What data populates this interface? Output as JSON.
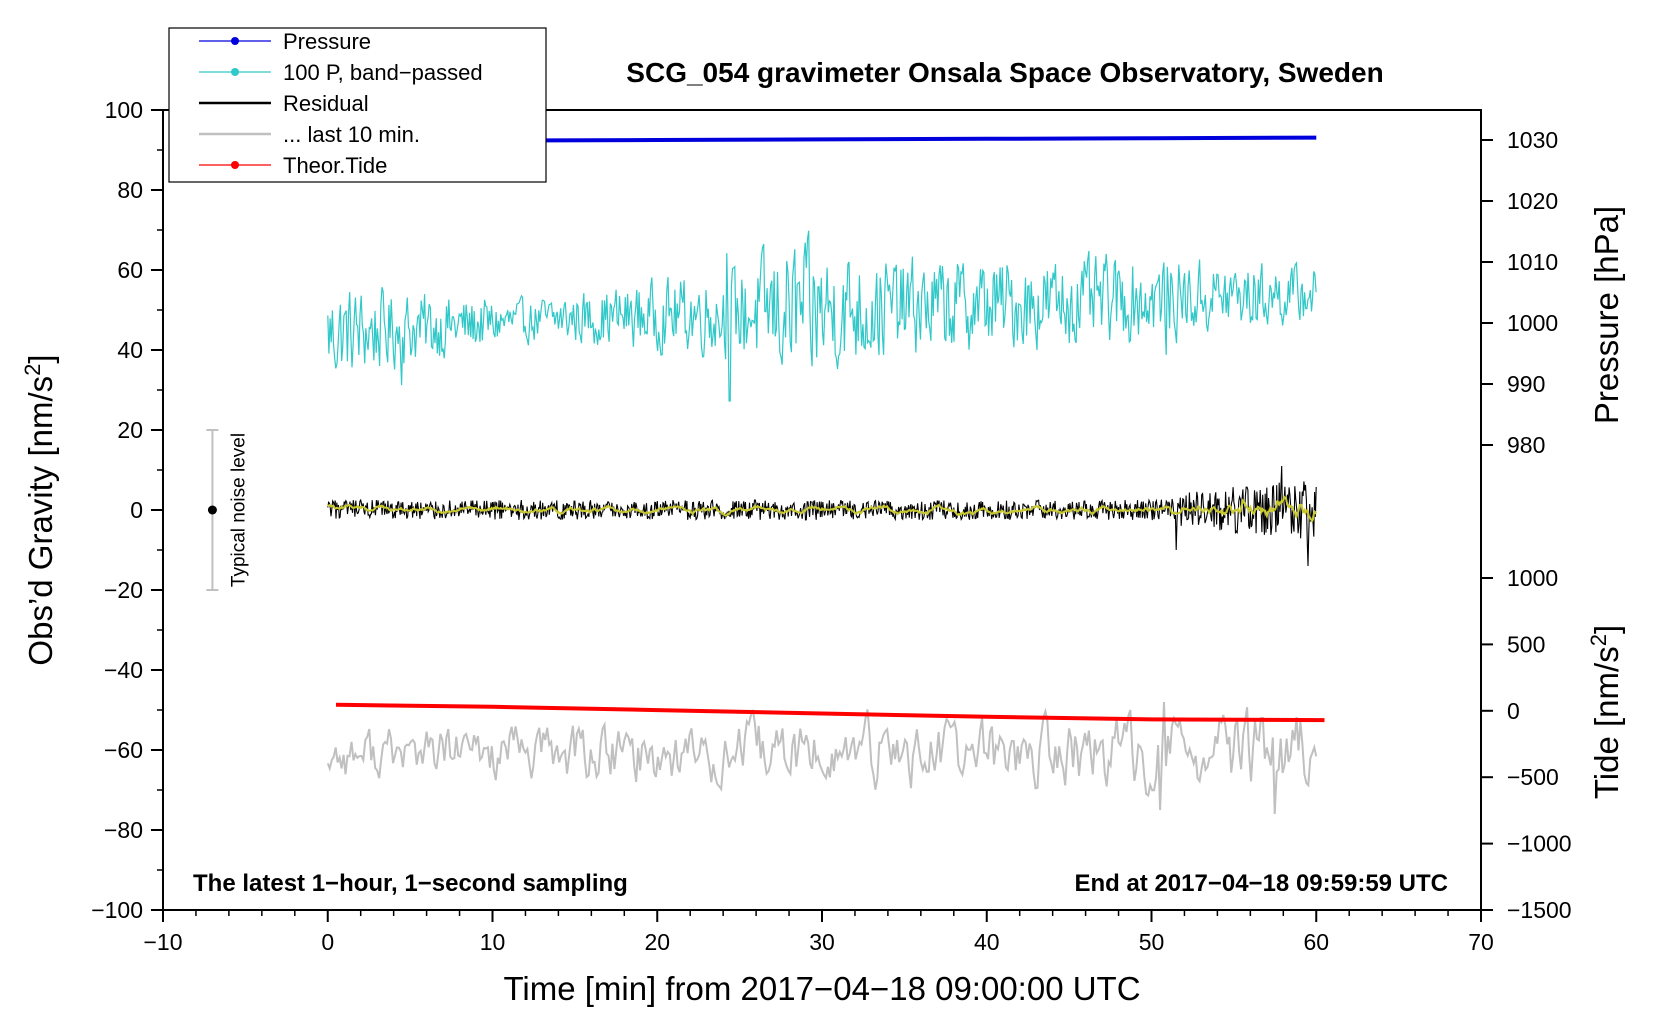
{
  "chart_data": {
    "type": "line",
    "title": "SCG_054 gravimeter Onsala Space Observatory, Sweden",
    "xlabel": "Time [min] from 2017−04−18 09:00:00 UTC",
    "ylabel_left": "Obs’d Gravity [nm/s²]",
    "ylabel_pressure": "Pressure [hPa]",
    "ylabel_tide": "Tide [nm/s²]",
    "xlim": [
      -10,
      70
    ],
    "ylim_left": [
      -100,
      100
    ],
    "ylim_pressure": [
      975,
      1035
    ],
    "ylim_tide": [
      -1500,
      1000
    ],
    "grid": false,
    "legend_position": "top-left",
    "x_ticks": [
      "−10",
      "0",
      "10",
      "20",
      "30",
      "40",
      "50",
      "60",
      "70"
    ],
    "y_ticks_left": [
      "100",
      "80",
      "60",
      "40",
      "20",
      "0",
      "−20",
      "−40",
      "−60",
      "−80",
      "−100"
    ],
    "y_ticks_pressure": [
      "1030",
      "1020",
      "1010",
      "1000",
      "990",
      "980"
    ],
    "y_ticks_tide": [
      "1000",
      "500",
      "0",
      "−500",
      "−1000",
      "−1500"
    ],
    "annotations": {
      "bottom_left": "The latest 1−hour, 1−second sampling",
      "bottom_right": "End at 2017−04−18 09:59:59 UTC",
      "noise": "Typical noise level"
    },
    "noise_bar": {
      "x": -7,
      "center": 0,
      "half_range": 20
    },
    "series": [
      {
        "name": "Pressure",
        "axis": "pressure",
        "color": "#0000dd",
        "x": [
          0,
          10,
          20,
          30,
          40,
          50,
          60
        ],
        "values": [
          1030.0,
          1029.9,
          1030.0,
          1030.1,
          1030.2,
          1030.3,
          1030.4
        ]
      },
      {
        "name": "100 P, band−passed",
        "axis": "left",
        "color": "#30c8c8",
        "baseline": [
          [
            0,
            44
          ],
          [
            15,
            48
          ],
          [
            30,
            50
          ],
          [
            45,
            52
          ],
          [
            60,
            54
          ]
        ],
        "amplitude": [
          [
            0,
            7
          ],
          [
            12,
            3
          ],
          [
            24,
            6
          ],
          [
            28,
            10
          ],
          [
            35,
            7
          ],
          [
            50,
            6
          ],
          [
            60,
            4
          ]
        ],
        "spikes": [
          [
            4.5,
            -14
          ],
          [
            24.4,
            -22
          ],
          [
            24.2,
            15
          ],
          [
            29.0,
            17
          ],
          [
            29.4,
            -14
          ],
          [
            50.9,
            -14
          ]
        ]
      },
      {
        "name": "Residual",
        "axis": "left",
        "color": "#000000",
        "baseline": [
          [
            0,
            0
          ],
          [
            60,
            0
          ]
        ],
        "amplitude": [
          [
            0,
            2.5
          ],
          [
            50,
            2.5
          ],
          [
            53,
            5
          ],
          [
            60,
            8
          ]
        ],
        "spikes": [
          [
            57.9,
            11
          ],
          [
            59.5,
            -14
          ],
          [
            51.5,
            -10
          ]
        ]
      },
      {
        "name": "... last 10 min.",
        "axis": "left",
        "color": "#c0c0c0",
        "baseline": [
          [
            0,
            -61
          ],
          [
            60,
            -61
          ]
        ],
        "amplitude": [
          [
            0,
            5
          ],
          [
            20,
            6
          ],
          [
            50,
            7
          ],
          [
            60,
            8
          ]
        ],
        "spikes": [
          [
            50.8,
            13
          ],
          [
            50.5,
            -14
          ],
          [
            57.5,
            -15
          ],
          [
            56.7,
            9
          ]
        ]
      },
      {
        "name": "Theor.Tide",
        "axis": "tide",
        "color": "#ff0000",
        "x": [
          0.5,
          10,
          20,
          30,
          40,
          50,
          60.5
        ],
        "values": [
          45,
          30,
          5,
          -20,
          -45,
          -65,
          -70
        ]
      }
    ],
    "residual_smoothed_color": "#c8c830"
  }
}
